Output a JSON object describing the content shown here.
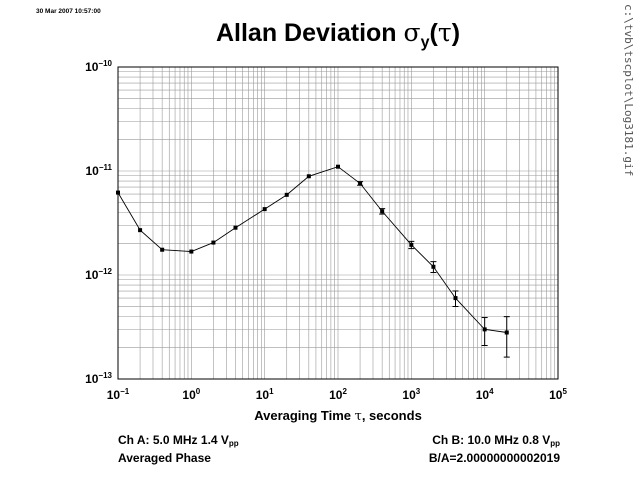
{
  "header": {
    "timestamp": "30 Mar 2007 10:57:00",
    "title_text": "Allan Deviation ",
    "title_symbol": "σ",
    "title_sub": "y",
    "title_arg_open": "(",
    "title_arg": "τ",
    "title_arg_close": ")",
    "side_path": "c:\\tvb\\tscplot\\Log3181.gif"
  },
  "footer": {
    "ch_a_label": "Ch A: 5.0 MHz 1.4 V",
    "ch_a_sub": "pp",
    "ch_a_mode": "Averaged Phase",
    "ch_b_label": "Ch B: 10.0 MHz 0.8 V",
    "ch_b_sub": "pp",
    "ratio": "B/A=2.00000000002019"
  },
  "chart_data": {
    "type": "scatter",
    "title": "Allan Deviation σy(τ)",
    "xlabel_text": "Averaging Time ",
    "xlabel_symbol": "τ",
    "xlabel_suffix": ", seconds",
    "xscale": "log",
    "yscale": "log",
    "xlim": [
      0.1,
      100000
    ],
    "ylim": [
      1e-13,
      1e-10
    ],
    "x_ticks": [
      {
        "base": "10",
        "exp": "−1"
      },
      {
        "base": "10",
        "exp": "0"
      },
      {
        "base": "10",
        "exp": "1"
      },
      {
        "base": "10",
        "exp": "2"
      },
      {
        "base": "10",
        "exp": "3"
      },
      {
        "base": "10",
        "exp": "4"
      },
      {
        "base": "10",
        "exp": "5"
      }
    ],
    "y_ticks": [
      {
        "base": "10",
        "exp": "−10"
      },
      {
        "base": "10",
        "exp": "−11"
      },
      {
        "base": "10",
        "exp": "−12"
      },
      {
        "base": "10",
        "exp": "−13"
      }
    ],
    "grid": true,
    "legend": "none",
    "series": [
      {
        "x": [
          0.1,
          0.2,
          0.4,
          1,
          2,
          4,
          10,
          20,
          40,
          100,
          200,
          400,
          1000,
          2000,
          4000,
          10000,
          20000
        ],
        "y": [
          6.2e-12,
          2.7e-12,
          1.75e-12,
          1.68e-12,
          2.05e-12,
          2.85e-12,
          4.3e-12,
          5.9e-12,
          8.9e-12,
          1.1e-11,
          7.6e-12,
          4.1e-12,
          1.95e-12,
          1.2e-12,
          6e-13,
          3e-13,
          2.8e-13
        ],
        "err": [
          0,
          0,
          0,
          0,
          0,
          0,
          0,
          0,
          0,
          0,
          0.04,
          0.06,
          0.08,
          0.12,
          0.17,
          0.3,
          0.42
        ],
        "color": "#000000"
      }
    ]
  }
}
